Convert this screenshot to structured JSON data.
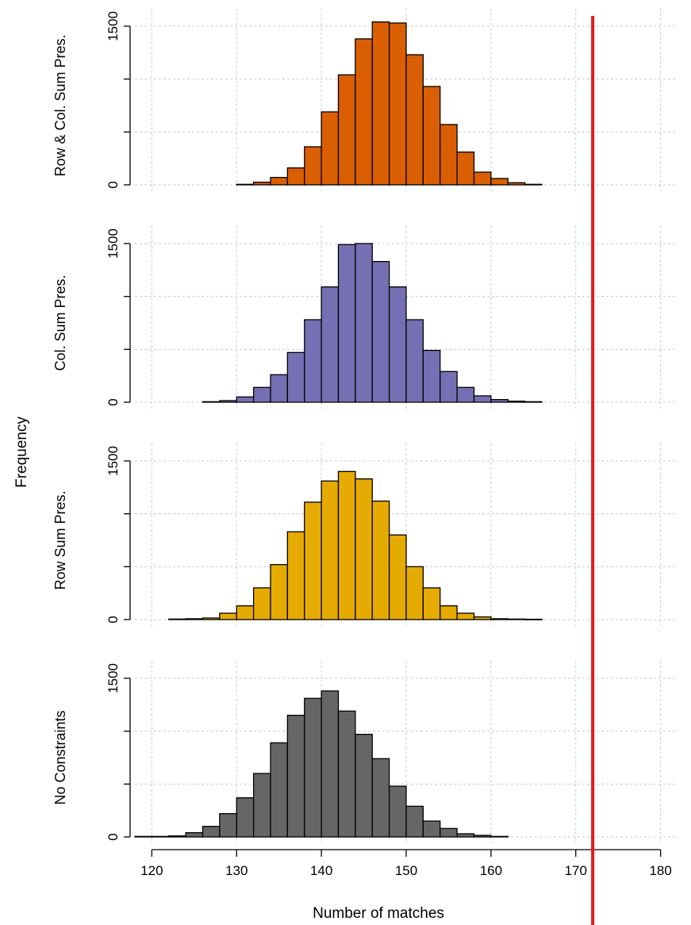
{
  "chart_data": {
    "type": "bar",
    "subtype": "stacked-histograms",
    "title": "",
    "xlabel": "Number of matches",
    "ylabel": "Frequency",
    "xlim": [
      118,
      182
    ],
    "ylim": [
      0,
      1500
    ],
    "x_ticks": [
      120,
      130,
      140,
      150,
      160,
      170,
      180
    ],
    "y_ticks": [
      0,
      1500
    ],
    "grid": true,
    "bin_width": 2,
    "reference_line": {
      "x": 172,
      "color": "#e31a1c"
    },
    "panels": [
      {
        "name": "Row & Col. Sum Pres.",
        "color": "#d95f02",
        "bin_start": 130,
        "counts": [
          5,
          25,
          70,
          160,
          360,
          690,
          1040,
          1380,
          1540,
          1530,
          1230,
          930,
          570,
          310,
          120,
          60,
          20,
          5
        ]
      },
      {
        "name": "Col. Sum Pres.",
        "color": "#7570b3",
        "bin_start": 126,
        "counts": [
          5,
          15,
          50,
          140,
          260,
          470,
          780,
          1090,
          1490,
          1500,
          1330,
          1090,
          780,
          490,
          290,
          140,
          60,
          25,
          10,
          5
        ]
      },
      {
        "name": "Row Sum Pres.",
        "color": "#e6ab02",
        "bin_start": 122,
        "counts": [
          5,
          8,
          15,
          60,
          130,
          300,
          520,
          830,
          1110,
          1310,
          1400,
          1330,
          1120,
          800,
          500,
          300,
          130,
          60,
          25,
          8,
          5,
          3
        ]
      },
      {
        "name": "No Constraints",
        "color": "#666666",
        "bin_start": 118,
        "counts": [
          5,
          5,
          10,
          40,
          100,
          220,
          370,
          600,
          890,
          1150,
          1310,
          1380,
          1190,
          970,
          740,
          480,
          290,
          150,
          80,
          30,
          15,
          5
        ]
      }
    ]
  }
}
